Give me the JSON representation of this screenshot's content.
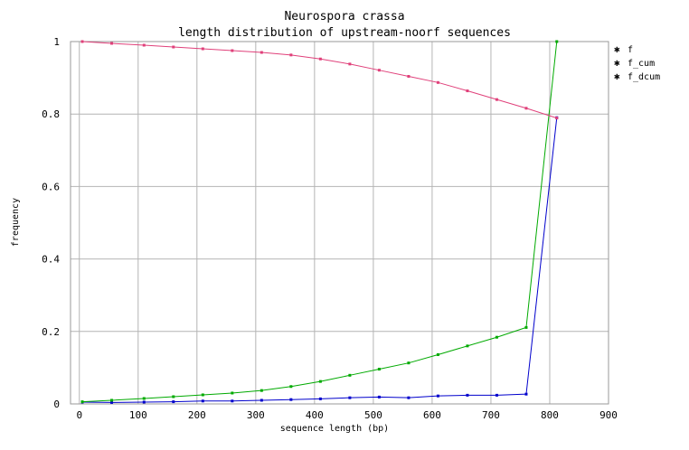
{
  "chart_data": {
    "type": "line",
    "title": "Neurospora crassa",
    "subtitle": "length distribution of upstream-noorf sequences",
    "xlabel": "sequence length (bp)",
    "ylabel": "frequency",
    "xlim": [
      -15,
      900
    ],
    "ylim": [
      0,
      1
    ],
    "xticks": [
      "0",
      "100",
      "200",
      "300",
      "400",
      "500",
      "600",
      "700",
      "800",
      "900"
    ],
    "yticks": [
      "0",
      "0.2",
      "0.4",
      "0.6",
      "0.8",
      "1"
    ],
    "grid": true,
    "legend": "top-right",
    "x": [
      5,
      55,
      110,
      160,
      210,
      260,
      310,
      360,
      410,
      460,
      510,
      560,
      610,
      660,
      710,
      760,
      812
    ],
    "series": [
      {
        "name": "f",
        "color": "#0000cc",
        "values": [
          0.005,
          0.004,
          0.005,
          0.006,
          0.008,
          0.008,
          0.01,
          0.012,
          0.014,
          0.017,
          0.019,
          0.017,
          0.022,
          0.024,
          0.024,
          0.027,
          0.79
        ]
      },
      {
        "name": "f_cum",
        "color": "#00aa00",
        "values": [
          0.006,
          0.01,
          0.015,
          0.02,
          0.025,
          0.03,
          0.037,
          0.048,
          0.062,
          0.079,
          0.096,
          0.113,
          0.136,
          0.16,
          0.184,
          0.211,
          1.0
        ]
      },
      {
        "name": "f_dcum",
        "color": "#e0407a",
        "values": [
          1.0,
          0.995,
          0.99,
          0.985,
          0.98,
          0.975,
          0.97,
          0.963,
          0.952,
          0.938,
          0.921,
          0.904,
          0.887,
          0.864,
          0.84,
          0.816,
          0.789
        ]
      }
    ]
  }
}
